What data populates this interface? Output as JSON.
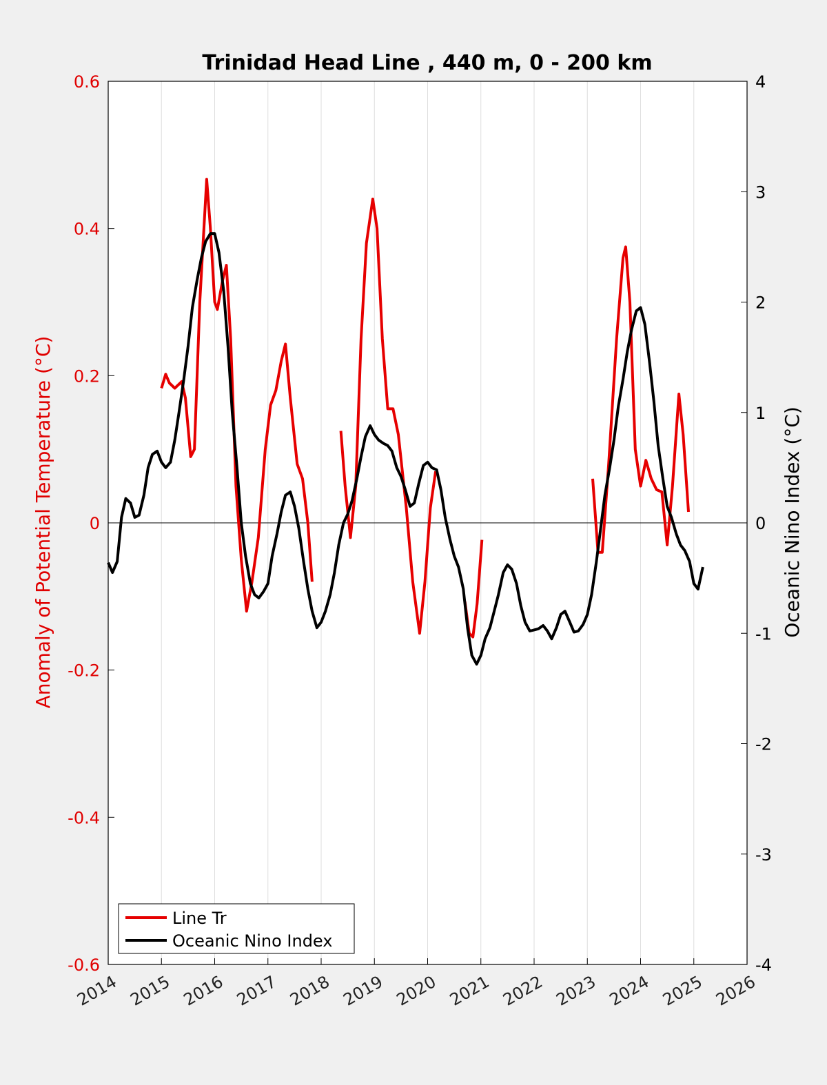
{
  "chart_data": {
    "type": "line",
    "title": "Trinidad Head Line , 440 m, 0 - 200 km",
    "xlabel": "",
    "ylabel_left": "Anomaly of Potential Temperature (°C)",
    "ylabel_right": "Oceanic Nino Index (°C)",
    "xlim": [
      2014,
      2026
    ],
    "ylim_left": [
      -0.6,
      0.6
    ],
    "ylim_right": [
      -4,
      4
    ],
    "x_ticks": [
      "2014",
      "2015",
      "2016",
      "2017",
      "2018",
      "2019",
      "2020",
      "2021",
      "2022",
      "2023",
      "2024",
      "2025",
      "2026"
    ],
    "y_ticks_left": [
      "-0.6",
      "-0.4",
      "-0.2",
      "0",
      "0.2",
      "0.4",
      "0.6"
    ],
    "y_ticks_right": [
      "-4",
      "-3",
      "-2",
      "-1",
      "0",
      "1",
      "2",
      "3",
      "4"
    ],
    "grid": "vertical",
    "legend_position": "bottom-left",
    "colors": {
      "line_tr": "#e60000",
      "oni": "#000000",
      "left_axis": "#e00000"
    },
    "series": [
      {
        "name": "Line Tr",
        "axis": "left",
        "segments": [
          [
            [
              2015.0,
              0.183
            ],
            [
              2015.08,
              0.202
            ],
            [
              2015.15,
              0.19
            ],
            [
              2015.25,
              0.183
            ],
            [
              2015.38,
              0.192
            ],
            [
              2015.45,
              0.17
            ],
            [
              2015.55,
              0.09
            ],
            [
              2015.62,
              0.1
            ],
            [
              2015.72,
              0.3
            ],
            [
              2015.85,
              0.467
            ],
            [
              2015.92,
              0.4
            ],
            [
              2016.0,
              0.3
            ],
            [
              2016.05,
              0.29
            ],
            [
              2016.15,
              0.33
            ],
            [
              2016.22,
              0.35
            ],
            [
              2016.3,
              0.25
            ],
            [
              2016.4,
              0.05
            ],
            [
              2016.5,
              -0.05
            ],
            [
              2016.6,
              -0.12
            ],
            [
              2016.7,
              -0.08
            ],
            [
              2016.82,
              -0.02
            ],
            [
              2016.95,
              0.1
            ],
            [
              2017.05,
              0.16
            ],
            [
              2017.15,
              0.18
            ],
            [
              2017.25,
              0.22
            ],
            [
              2017.33,
              0.243
            ],
            [
              2017.42,
              0.17
            ],
            [
              2017.55,
              0.08
            ],
            [
              2017.65,
              0.06
            ],
            [
              2017.75,
              0.0
            ],
            [
              2017.83,
              -0.08
            ]
          ],
          [
            [
              2018.37,
              0.125
            ],
            [
              2018.45,
              0.05
            ],
            [
              2018.55,
              -0.02
            ],
            [
              2018.65,
              0.05
            ],
            [
              2018.75,
              0.25
            ],
            [
              2018.85,
              0.38
            ],
            [
              2018.97,
              0.44
            ],
            [
              2019.05,
              0.4
            ],
            [
              2019.15,
              0.25
            ],
            [
              2019.25,
              0.155
            ],
            [
              2019.35,
              0.155
            ],
            [
              2019.45,
              0.12
            ],
            [
              2019.6,
              0.02
            ],
            [
              2019.72,
              -0.08
            ],
            [
              2019.85,
              -0.15
            ],
            [
              2019.95,
              -0.08
            ],
            [
              2020.05,
              0.02
            ],
            [
              2020.15,
              0.07
            ]
          ],
          [
            [
              2020.7,
              -0.107
            ],
            [
              2020.78,
              -0.15
            ],
            [
              2020.85,
              -0.155
            ],
            [
              2020.93,
              -0.11
            ],
            [
              2021.02,
              -0.023
            ]
          ],
          [
            [
              2023.1,
              0.06
            ],
            [
              2023.2,
              -0.04
            ],
            [
              2023.28,
              -0.04
            ],
            [
              2023.4,
              0.08
            ],
            [
              2023.55,
              0.25
            ],
            [
              2023.67,
              0.36
            ],
            [
              2023.72,
              0.375
            ],
            [
              2023.8,
              0.3
            ],
            [
              2023.9,
              0.1
            ],
            [
              2024.0,
              0.05
            ],
            [
              2024.1,
              0.085
            ],
            [
              2024.2,
              0.06
            ],
            [
              2024.3,
              0.045
            ],
            [
              2024.4,
              0.042
            ],
            [
              2024.5,
              -0.03
            ],
            [
              2024.6,
              0.05
            ],
            [
              2024.72,
              0.175
            ],
            [
              2024.8,
              0.12
            ],
            [
              2024.9,
              0.015
            ]
          ]
        ]
      },
      {
        "name": "Oceanic Nino Index",
        "axis": "right",
        "segments": [
          [
            [
              2014.0,
              -0.36
            ],
            [
              2014.08,
              -0.45
            ],
            [
              2014.17,
              -0.35
            ],
            [
              2014.25,
              0.05
            ],
            [
              2014.33,
              0.22
            ],
            [
              2014.42,
              0.18
            ],
            [
              2014.5,
              0.05
            ],
            [
              2014.58,
              0.07
            ],
            [
              2014.67,
              0.25
            ],
            [
              2014.75,
              0.5
            ],
            [
              2014.83,
              0.62
            ],
            [
              2014.92,
              0.65
            ],
            [
              2015.0,
              0.55
            ],
            [
              2015.08,
              0.5
            ],
            [
              2015.17,
              0.55
            ],
            [
              2015.25,
              0.75
            ],
            [
              2015.33,
              1.0
            ],
            [
              2015.42,
              1.3
            ],
            [
              2015.5,
              1.6
            ],
            [
              2015.58,
              1.95
            ],
            [
              2015.67,
              2.2
            ],
            [
              2015.75,
              2.4
            ],
            [
              2015.83,
              2.55
            ],
            [
              2015.92,
              2.62
            ],
            [
              2016.0,
              2.62
            ],
            [
              2016.08,
              2.45
            ],
            [
              2016.17,
              2.1
            ],
            [
              2016.25,
              1.6
            ],
            [
              2016.33,
              1.0
            ],
            [
              2016.42,
              0.5
            ],
            [
              2016.5,
              0.0
            ],
            [
              2016.58,
              -0.3
            ],
            [
              2016.67,
              -0.55
            ],
            [
              2016.75,
              -0.65
            ],
            [
              2016.83,
              -0.68
            ],
            [
              2016.92,
              -0.62
            ],
            [
              2017.0,
              -0.55
            ],
            [
              2017.08,
              -0.3
            ],
            [
              2017.17,
              -0.1
            ],
            [
              2017.25,
              0.1
            ],
            [
              2017.33,
              0.25
            ],
            [
              2017.42,
              0.28
            ],
            [
              2017.5,
              0.15
            ],
            [
              2017.58,
              -0.05
            ],
            [
              2017.67,
              -0.35
            ],
            [
              2017.75,
              -0.6
            ],
            [
              2017.83,
              -0.8
            ],
            [
              2017.92,
              -0.95
            ],
            [
              2018.0,
              -0.9
            ],
            [
              2018.08,
              -0.8
            ],
            [
              2018.17,
              -0.65
            ],
            [
              2018.25,
              -0.45
            ],
            [
              2018.33,
              -0.2
            ],
            [
              2018.42,
              0.0
            ],
            [
              2018.5,
              0.08
            ],
            [
              2018.58,
              0.2
            ],
            [
              2018.67,
              0.4
            ],
            [
              2018.75,
              0.6
            ],
            [
              2018.83,
              0.78
            ],
            [
              2018.92,
              0.88
            ],
            [
              2019.0,
              0.8
            ],
            [
              2019.08,
              0.75
            ],
            [
              2019.17,
              0.72
            ],
            [
              2019.25,
              0.7
            ],
            [
              2019.33,
              0.65
            ],
            [
              2019.42,
              0.5
            ],
            [
              2019.5,
              0.42
            ],
            [
              2019.58,
              0.3
            ],
            [
              2019.67,
              0.15
            ],
            [
              2019.75,
              0.18
            ],
            [
              2019.83,
              0.35
            ],
            [
              2019.92,
              0.52
            ],
            [
              2020.0,
              0.55
            ],
            [
              2020.08,
              0.5
            ],
            [
              2020.17,
              0.48
            ],
            [
              2020.25,
              0.3
            ],
            [
              2020.33,
              0.05
            ],
            [
              2020.42,
              -0.15
            ],
            [
              2020.5,
              -0.3
            ],
            [
              2020.58,
              -0.4
            ],
            [
              2020.67,
              -0.6
            ],
            [
              2020.75,
              -0.95
            ],
            [
              2020.83,
              -1.2
            ],
            [
              2020.92,
              -1.28
            ],
            [
              2021.0,
              -1.2
            ],
            [
              2021.08,
              -1.05
            ],
            [
              2021.17,
              -0.95
            ],
            [
              2021.25,
              -0.8
            ],
            [
              2021.33,
              -0.65
            ],
            [
              2021.42,
              -0.45
            ],
            [
              2021.5,
              -0.38
            ],
            [
              2021.58,
              -0.42
            ],
            [
              2021.67,
              -0.55
            ],
            [
              2021.75,
              -0.75
            ],
            [
              2021.83,
              -0.9
            ],
            [
              2021.92,
              -0.98
            ],
            [
              2022.0,
              -0.97
            ],
            [
              2022.08,
              -0.96
            ],
            [
              2022.17,
              -0.93
            ],
            [
              2022.25,
              -0.98
            ],
            [
              2022.33,
              -1.05
            ],
            [
              2022.42,
              -0.95
            ],
            [
              2022.5,
              -0.83
            ],
            [
              2022.58,
              -0.8
            ],
            [
              2022.67,
              -0.9
            ],
            [
              2022.75,
              -0.99
            ],
            [
              2022.83,
              -0.98
            ],
            [
              2022.92,
              -0.92
            ],
            [
              2023.0,
              -0.83
            ],
            [
              2023.08,
              -0.65
            ],
            [
              2023.17,
              -0.35
            ],
            [
              2023.25,
              -0.05
            ],
            [
              2023.33,
              0.25
            ],
            [
              2023.42,
              0.5
            ],
            [
              2023.5,
              0.75
            ],
            [
              2023.58,
              1.05
            ],
            [
              2023.67,
              1.3
            ],
            [
              2023.75,
              1.55
            ],
            [
              2023.83,
              1.75
            ],
            [
              2023.92,
              1.92
            ],
            [
              2024.0,
              1.95
            ],
            [
              2024.08,
              1.8
            ],
            [
              2024.17,
              1.45
            ],
            [
              2024.25,
              1.1
            ],
            [
              2024.33,
              0.7
            ],
            [
              2024.42,
              0.4
            ],
            [
              2024.5,
              0.15
            ],
            [
              2024.58,
              0.05
            ],
            [
              2024.67,
              -0.1
            ],
            [
              2024.75,
              -0.2
            ],
            [
              2024.83,
              -0.25
            ],
            [
              2024.92,
              -0.35
            ],
            [
              2025.0,
              -0.55
            ],
            [
              2025.08,
              -0.6
            ],
            [
              2025.17,
              -0.4
            ]
          ]
        ]
      }
    ]
  }
}
